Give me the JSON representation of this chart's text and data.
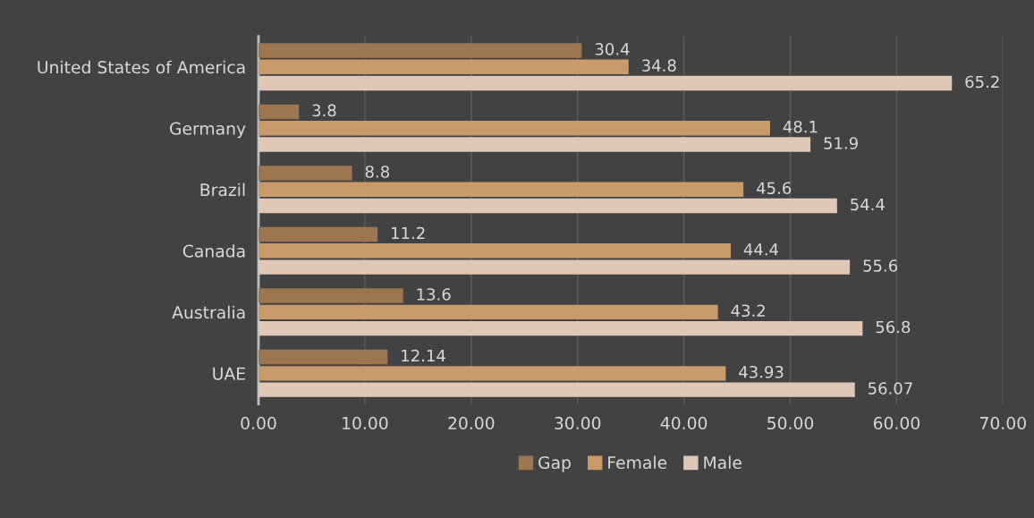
{
  "chart_data": {
    "type": "bar",
    "orientation": "horizontal",
    "categories": [
      "United States of America",
      "Germany",
      "Brazil",
      "Canada",
      "Australia",
      "UAE"
    ],
    "series": [
      {
        "name": "Gap",
        "color": "#9c7650",
        "values": [
          30.4,
          3.8,
          8.8,
          11.2,
          13.6,
          12.14
        ]
      },
      {
        "name": "Female",
        "color": "#c99a6c",
        "values": [
          34.8,
          48.1,
          45.6,
          44.4,
          43.2,
          43.93
        ]
      },
      {
        "name": "Male",
        "color": "#dfc8b8",
        "values": [
          65.2,
          51.9,
          54.4,
          55.6,
          56.8,
          56.07
        ]
      }
    ],
    "xlim": [
      0,
      70
    ],
    "xticks": [
      {
        "value": 0,
        "label": "0.00"
      },
      {
        "value": 10,
        "label": "10.00"
      },
      {
        "value": 20,
        "label": "20.00"
      },
      {
        "value": 30,
        "label": "30.00"
      },
      {
        "value": 40,
        "label": "40.00"
      },
      {
        "value": 50,
        "label": "50.00"
      },
      {
        "value": 60,
        "label": "60.00"
      },
      {
        "value": 70,
        "label": "70.00"
      }
    ],
    "grid": "x",
    "legend": "bottom",
    "data_labels": true
  }
}
